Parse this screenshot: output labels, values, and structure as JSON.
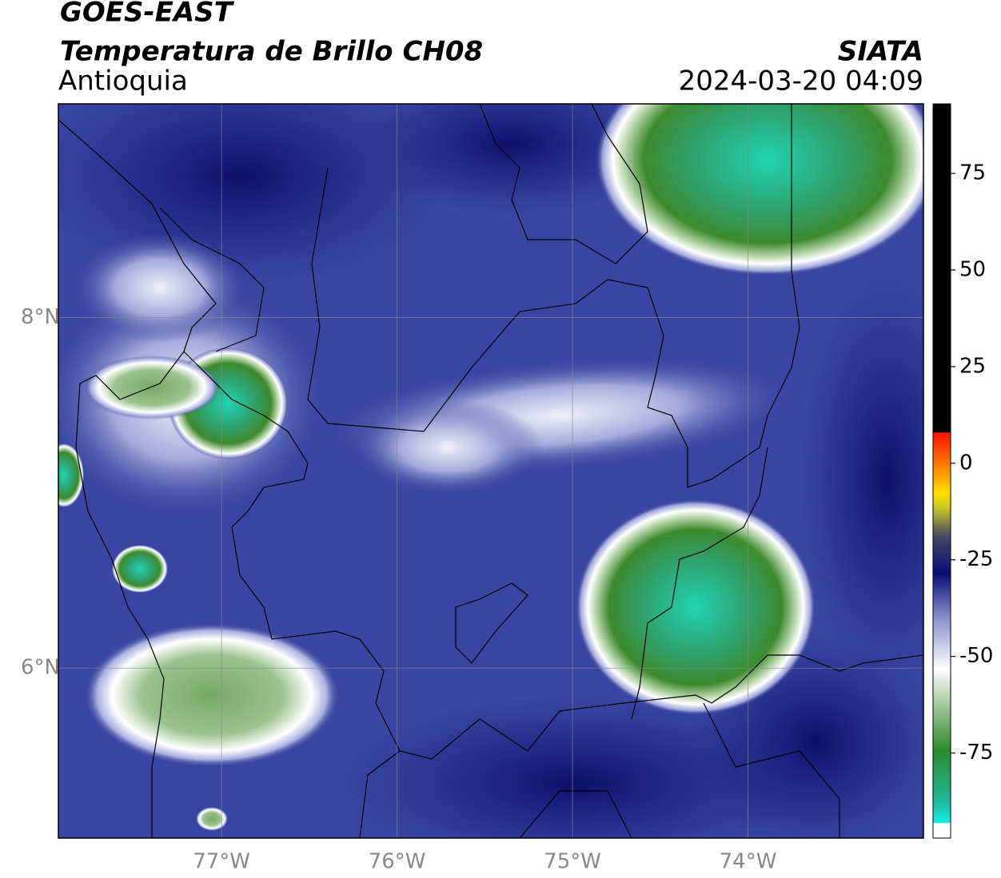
{
  "chart_data": {
    "type": "map",
    "title": "GOES-EAST",
    "subtitle": "Temperatura de Brillo CH08",
    "region": "Antioquia",
    "source": "SIATA",
    "datetime": "2024-03-20 04:09",
    "xlim": [
      -77.93,
      -73.0
    ],
    "ylim": [
      5.03,
      9.22
    ],
    "xticks": [
      {
        "value": -77,
        "label": "77°W"
      },
      {
        "value": -76,
        "label": "76°W"
      },
      {
        "value": -75,
        "label": "75°W"
      },
      {
        "value": -74,
        "label": "74°W"
      }
    ],
    "yticks": [
      {
        "value": 6,
        "label": "6°N"
      },
      {
        "value": 8,
        "label": "8°N"
      }
    ],
    "grid": true,
    "colorbar": {
      "clim": [
        -97,
        93
      ],
      "ticks": [
        75,
        50,
        25,
        0,
        -25,
        -50,
        -75
      ]
    }
  }
}
